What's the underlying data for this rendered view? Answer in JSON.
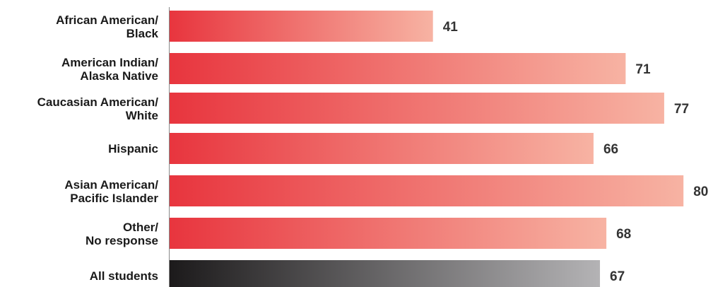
{
  "chart_data": {
    "type": "bar",
    "orientation": "horizontal",
    "categories": [
      [
        "African American/",
        "Black"
      ],
      [
        "American Indian/",
        "Alaska Native"
      ],
      [
        "Caucasian American/",
        "White"
      ],
      [
        "Hispanic"
      ],
      [
        "Asian American/",
        "Pacific Islander"
      ],
      [
        "Other/",
        "No response"
      ],
      [
        "All students"
      ]
    ],
    "values": [
      41,
      71,
      77,
      66,
      80,
      68,
      67
    ],
    "value_labels": [
      "41",
      "71",
      "77",
      "66",
      "80",
      "68",
      "67"
    ],
    "title": "",
    "xlabel": "",
    "ylabel": "",
    "xlim": [
      0,
      100
    ],
    "grid": false,
    "legend": "none",
    "colors": {
      "group_bar_start": "#e8353e",
      "group_bar_end": "#f7b3a3",
      "total_bar_start": "#1c1a1b",
      "total_bar_end": "#b4b3b5",
      "axis": "#888888"
    },
    "highlight_last_as_total": true
  }
}
